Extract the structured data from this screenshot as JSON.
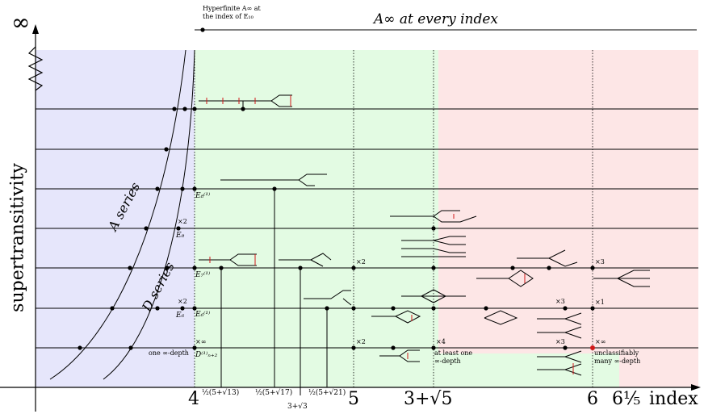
{
  "colors": {
    "blue_region": "#e6e6fb",
    "green_region": "#e3fbe3",
    "red_region": "#fde6e6",
    "accent_red": "#d11818"
  },
  "axes": {
    "xlabel": "index",
    "ylabel": "supertransitivity",
    "infinity": "∞",
    "x_ticks": [
      "4",
      "5",
      "3+√5",
      "6",
      "6⅕"
    ]
  },
  "top": {
    "hyperfinite": "Hyperfinite A∞ at",
    "hyperfinite_line2": "the index of E₁₀",
    "every_index": "A∞ at every index"
  },
  "series": {
    "a": "A series",
    "d": "D series"
  },
  "index_labels": {
    "a": "½(5+√13)",
    "b": "½(5+√17)",
    "c": "½(5+√21)",
    "d": "3+√3"
  },
  "graph_labels": {
    "e8_affine": "E₈⁽¹⁾",
    "e8": "E₈",
    "e7_affine": "E₇⁽¹⁾",
    "e6_affine": "E₆⁽¹⁾",
    "e6": "E₆",
    "d_affine": "D⁽¹⁾ₙ₊₂",
    "one_depth": "one ∞-depth",
    "at_least_one": "at least one",
    "inf_depth": "∞-depth",
    "unclassifiably": "unclassifiably",
    "many_depth": "many ∞-depth"
  },
  "multipliers": {
    "x2": "×2",
    "x3": "×3",
    "x4": "×4",
    "x1": "×1",
    "xinf": "×∞"
  }
}
